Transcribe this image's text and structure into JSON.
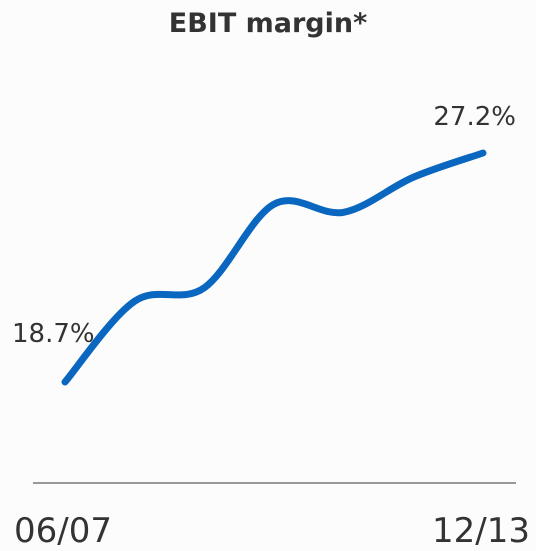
{
  "chart_data": {
    "type": "line",
    "title": "EBIT margin*",
    "categories": [
      "06/07",
      null,
      null,
      null,
      null,
      null,
      "12/13"
    ],
    "series": [
      {
        "name": null,
        "color": "#0a67c0",
        "values": [
          18.7,
          21.7,
          22.2,
          25.3,
          25.0,
          26.3,
          27.2
        ],
        "value_labels": [
          "18.7%",
          null,
          null,
          null,
          null,
          null,
          "27.2%"
        ]
      }
    ]
  }
}
